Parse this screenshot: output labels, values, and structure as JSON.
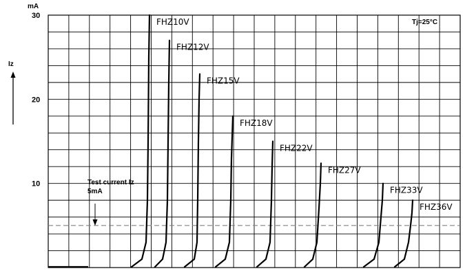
{
  "chart_data": {
    "type": "line",
    "title": "",
    "unit_label": "mA",
    "ylabel": "Iz",
    "condition": "Tj=25°C",
    "ylim": [
      0,
      30
    ],
    "yticks": [
      10,
      20,
      30
    ],
    "grid": true,
    "legend": "none",
    "reference_line": {
      "value": 5,
      "style": "dashed",
      "color": "#808080"
    },
    "annotation": {
      "line1": "Test current Iz",
      "line2": "5mA"
    },
    "series": [
      {
        "name": "FHZ10V",
        "points": [
          [
            191,
            0
          ],
          [
            206,
            1
          ],
          [
            212,
            3
          ],
          [
            214,
            8
          ],
          [
            215,
            15
          ],
          [
            216,
            25
          ],
          [
            217,
            30
          ]
        ]
      },
      {
        "name": "FHZ12V",
        "points": [
          [
            225,
            0
          ],
          [
            236,
            1
          ],
          [
            241,
            3
          ],
          [
            243,
            8
          ],
          [
            244,
            15
          ],
          [
            245,
            22
          ],
          [
            246,
            27
          ]
        ]
      },
      {
        "name": "FHZ15V",
        "points": [
          [
            268,
            0
          ],
          [
            282,
            1
          ],
          [
            286,
            3
          ],
          [
            287,
            8
          ],
          [
            288,
            15
          ],
          [
            289,
            20
          ],
          [
            290,
            23
          ]
        ]
      },
      {
        "name": "FHZ18V",
        "points": [
          [
            313,
            0
          ],
          [
            327,
            1
          ],
          [
            333,
            3
          ],
          [
            335,
            8
          ],
          [
            336,
            13
          ],
          [
            338,
            18
          ]
        ]
      },
      {
        "name": "FHZ22V",
        "points": [
          [
            373,
            0
          ],
          [
            386,
            1
          ],
          [
            392,
            3
          ],
          [
            394,
            8
          ],
          [
            395,
            12
          ],
          [
            396,
            15
          ]
        ]
      },
      {
        "name": "FHZ27V",
        "points": [
          [
            442,
            0
          ],
          [
            454,
            1
          ],
          [
            460,
            3
          ],
          [
            463,
            7
          ],
          [
            465,
            10
          ],
          [
            466,
            12.4
          ]
        ]
      },
      {
        "name": "FHZ33V",
        "points": [
          [
            528,
            0
          ],
          [
            543,
            1
          ],
          [
            550,
            3
          ],
          [
            553,
            6
          ],
          [
            555,
            8
          ],
          [
            556,
            10
          ]
        ]
      },
      {
        "name": "FHZ36V",
        "points": [
          [
            573,
            0
          ],
          [
            587,
            1
          ],
          [
            593,
            3
          ],
          [
            596,
            5
          ],
          [
            598,
            6.5
          ],
          [
            599,
            8
          ]
        ]
      }
    ],
    "baseline": {
      "x_start": 70,
      "x_end": 128
    }
  }
}
